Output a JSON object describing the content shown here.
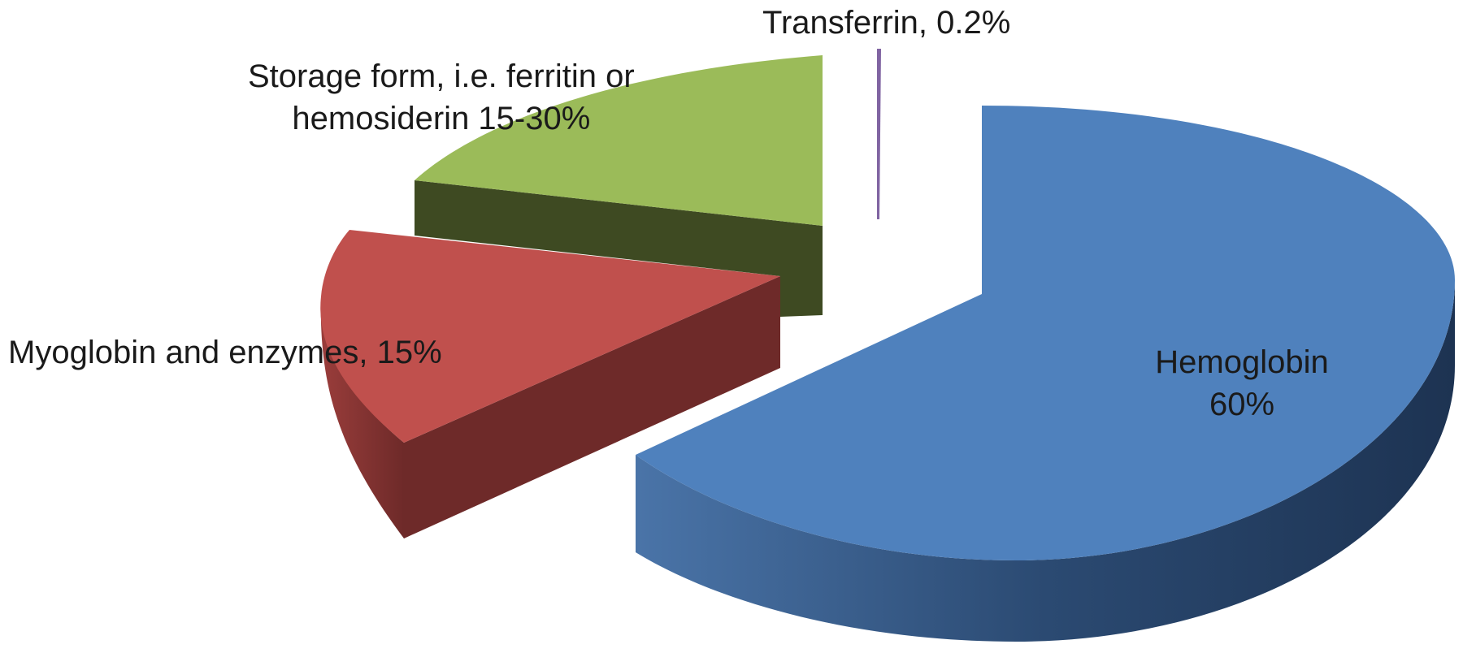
{
  "chart_data": {
    "type": "pie",
    "style": "3d-exploded",
    "title": "",
    "slices": [
      {
        "name": "Hemoglobin",
        "value": 60,
        "display": [
          "Hemoglobin",
          "60%"
        ],
        "color": "#4f81bd",
        "side_color": "#2b4a72"
      },
      {
        "name": "Myoglobin and enzymes",
        "value": 15,
        "display": [
          "Myoglobin and enzymes, 15%"
        ],
        "color": "#c0504d",
        "side_color": "#6e2a29"
      },
      {
        "name": "Storage form, i.e. ferritin or hemosiderin",
        "value": 22.5,
        "range": "15-30%",
        "display": [
          "Storage form, i.e. ferritin or",
          "hemosiderin 15-30%"
        ],
        "color": "#9bbb59",
        "side_color": "#3e4a22"
      },
      {
        "name": "Transferrin",
        "value": 0.2,
        "display": [
          "Transferrin, 0.2%"
        ],
        "color": "#8064a2",
        "side_color": "#4b3a63"
      }
    ],
    "legend": "none"
  }
}
